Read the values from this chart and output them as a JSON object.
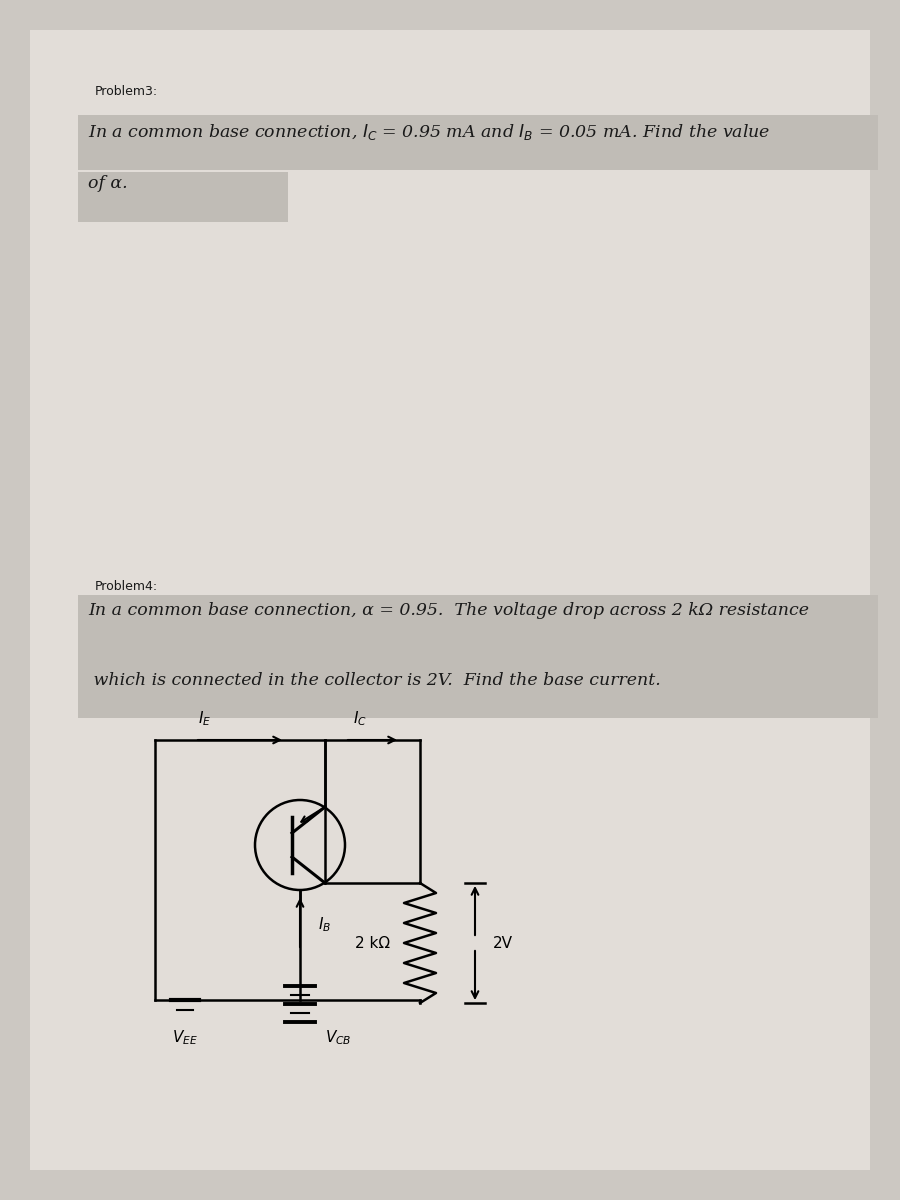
{
  "bg_color": "#ccc8c2",
  "page_color": "#e2ddd8",
  "highlight_color": "#c0bcb6",
  "text_color": "#1a1a1a",
  "problem3_label": "Problem3:",
  "problem3_line1": "In a common base connection, $I_C$ = 0.95 mA and $I_B$ = 0.05 mA. Find the value",
  "problem3_line2": "of α.",
  "problem4_label": "Problem4:",
  "problem4_line1": "In a common base connection, α = 0.95.  The voltage drop across 2 kΩ resistance",
  "problem4_line2": " which is connected in the collector is 2V.  Find the base current.",
  "label_fs": 9,
  "body_fs": 12.5,
  "circuit_fs": 11
}
